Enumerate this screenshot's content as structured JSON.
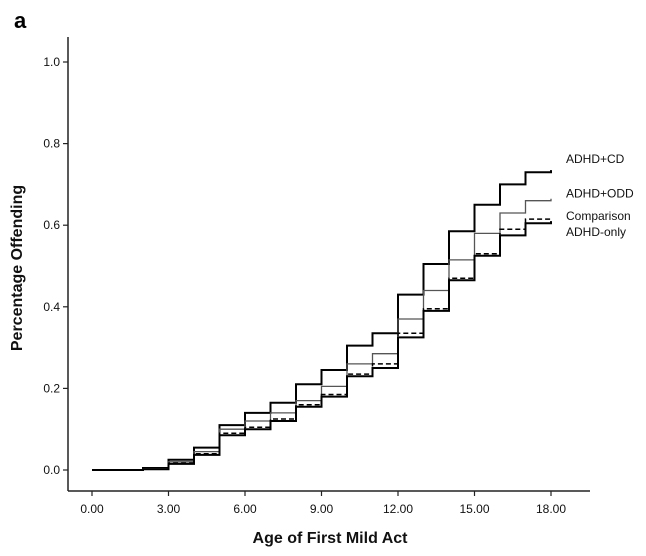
{
  "chart_data": {
    "type": "line",
    "panel_label": "a",
    "xlabel": "Age of First Mild Act",
    "ylabel": "Percentage Offending",
    "xlim": [
      -1.0,
      19.0
    ],
    "ylim": [
      -0.05,
      1.05
    ],
    "x_ticks": [
      0,
      3,
      6,
      9,
      12,
      15,
      18
    ],
    "x_tick_labels": [
      "0.00",
      "3.00",
      "6.00",
      "9.00",
      "12.00",
      "15.00",
      "18.00"
    ],
    "y_ticks": [
      0,
      0.2,
      0.4,
      0.6,
      0.8,
      1.0
    ],
    "y_tick_labels": [
      "0.0",
      "0.2",
      "0.4",
      "0.6",
      "0.8",
      "1.0"
    ],
    "grid": false,
    "step": "post",
    "x": [
      0,
      1,
      2,
      3,
      4,
      5,
      6,
      7,
      8,
      9,
      10,
      11,
      12,
      13,
      14,
      15,
      16,
      17,
      18
    ],
    "series": [
      {
        "name": "ADHD+CD",
        "color": "#000000",
        "width": 2,
        "dash": "",
        "values": [
          0,
          0,
          0.005,
          0.025,
          0.055,
          0.11,
          0.14,
          0.165,
          0.21,
          0.245,
          0.305,
          0.335,
          0.43,
          0.505,
          0.585,
          0.65,
          0.7,
          0.73,
          0.735
        ]
      },
      {
        "name": "ADHD+ODD",
        "color": "#555555",
        "width": 1.3,
        "dash": "",
        "values": [
          0,
          0,
          0.003,
          0.02,
          0.045,
          0.1,
          0.12,
          0.14,
          0.17,
          0.205,
          0.26,
          0.285,
          0.37,
          0.44,
          0.515,
          0.58,
          0.63,
          0.66,
          0.665
        ]
      },
      {
        "name": "Comparison",
        "color": "#000000",
        "width": 1.5,
        "dash": "5,3",
        "values": [
          0,
          0,
          0.002,
          0.017,
          0.04,
          0.09,
          0.105,
          0.125,
          0.16,
          0.185,
          0.235,
          0.26,
          0.335,
          0.395,
          0.47,
          0.53,
          0.59,
          0.615,
          0.62
        ]
      },
      {
        "name": "ADHD-only",
        "color": "#000000",
        "width": 2,
        "dash": "",
        "values": [
          0,
          0,
          0.002,
          0.015,
          0.037,
          0.085,
          0.1,
          0.12,
          0.155,
          0.18,
          0.23,
          0.25,
          0.325,
          0.39,
          0.465,
          0.525,
          0.575,
          0.605,
          0.61
        ]
      }
    ],
    "legend": [
      "ADHD+CD",
      "ADHD+ODD",
      "Comparison",
      "ADHD-only"
    ],
    "legend_placement": "right"
  }
}
